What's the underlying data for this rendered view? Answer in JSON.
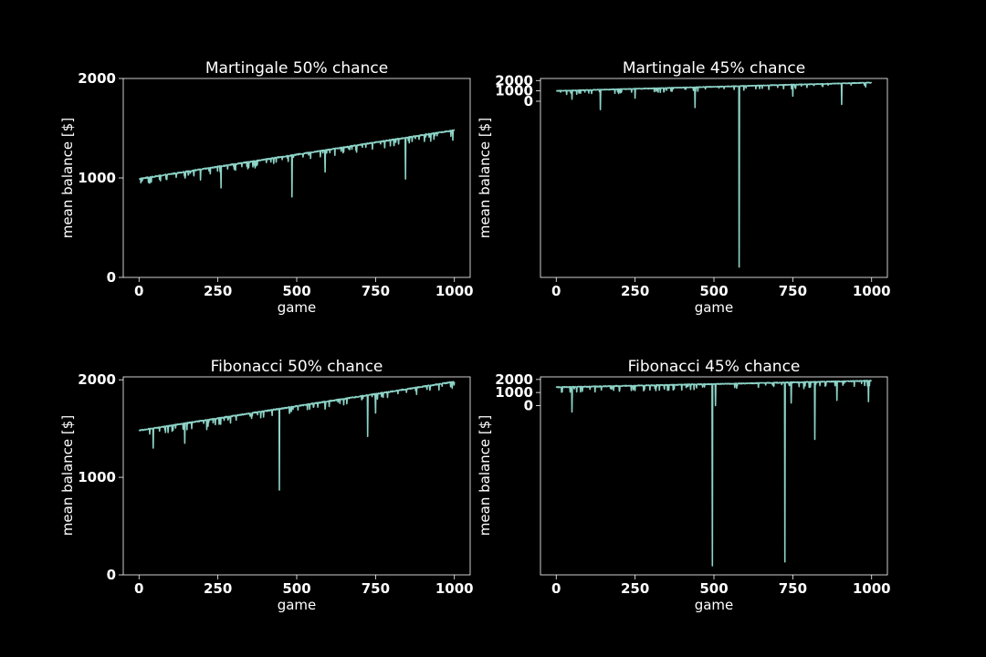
{
  "figure": {
    "background": "#000000",
    "foreground": "#ffffff",
    "line_color": "#8dd3c7"
  },
  "chart_data": [
    {
      "type": "line",
      "title": "Martingale 50% chance",
      "xlabel": "game",
      "ylabel": "mean balance [$]",
      "xlim": [
        -50,
        1050
      ],
      "ylim": [
        0,
        2000
      ],
      "xticks": [
        0,
        250,
        500,
        750,
        1000
      ],
      "yticks": [
        0,
        1000,
        2000
      ],
      "grid": false,
      "legend": "none",
      "series": [
        {
          "color": "#8dd3c7",
          "trend": {
            "x": [
              0,
              1000
            ],
            "y": [
              990,
              1480
            ]
          },
          "jitter": 10,
          "dips": [
            {
              "x": 10,
              "y": 970
            },
            {
              "x": 195,
              "y": 980
            },
            {
              "x": 260,
              "y": 900
            },
            {
              "x": 375,
              "y": 1130
            },
            {
              "x": 485,
              "y": 810
            },
            {
              "x": 590,
              "y": 1060
            },
            {
              "x": 845,
              "y": 990
            },
            {
              "x": 925,
              "y": 1370
            },
            {
              "x": 995,
              "y": 1380
            }
          ]
        }
      ]
    },
    {
      "type": "line",
      "title": "Martingale 45% chance",
      "xlabel": "game",
      "ylabel": "mean balance [$]",
      "xlim": [
        -50,
        1050
      ],
      "ylim": [
        -17000,
        2200
      ],
      "xticks": [
        0,
        250,
        500,
        750,
        1000
      ],
      "yticks": [
        0,
        1000,
        2000
      ],
      "grid": false,
      "legend": "none",
      "series": [
        {
          "color": "#8dd3c7",
          "trend": {
            "x": [
              0,
              1000
            ],
            "y": [
              1000,
              1800
            ]
          },
          "jitter": 60,
          "dips": [
            {
              "x": 50,
              "y": 200
            },
            {
              "x": 140,
              "y": -800
            },
            {
              "x": 250,
              "y": 300
            },
            {
              "x": 440,
              "y": -600
            },
            {
              "x": 580,
              "y": -16000
            },
            {
              "x": 750,
              "y": 500
            },
            {
              "x": 905,
              "y": -300
            }
          ]
        }
      ]
    },
    {
      "type": "line",
      "title": "Fibonacci 50% chance",
      "xlabel": "game",
      "ylabel": "mean balance [$]",
      "xlim": [
        -50,
        1050
      ],
      "ylim": [
        0,
        2030
      ],
      "xticks": [
        0,
        250,
        500,
        750,
        1000
      ],
      "yticks": [
        0,
        1000,
        2000
      ],
      "grid": false,
      "legend": "none",
      "series": [
        {
          "color": "#8dd3c7",
          "trend": {
            "x": [
              0,
              1000
            ],
            "y": [
              1480,
              1980
            ]
          },
          "jitter": 10,
          "dips": [
            {
              "x": 45,
              "y": 1300
            },
            {
              "x": 145,
              "y": 1350
            },
            {
              "x": 215,
              "y": 1490
            },
            {
              "x": 445,
              "y": 870
            },
            {
              "x": 590,
              "y": 1700
            },
            {
              "x": 725,
              "y": 1420
            },
            {
              "x": 750,
              "y": 1660
            },
            {
              "x": 880,
              "y": 1850
            }
          ]
        }
      ]
    },
    {
      "type": "line",
      "title": "Fibonacci 45% chance",
      "xlabel": "game",
      "ylabel": "mean balance [$]",
      "xlim": [
        -50,
        1050
      ],
      "ylim": [
        -13000,
        2200
      ],
      "xticks": [
        0,
        250,
        500,
        750,
        1000
      ],
      "yticks": [
        0,
        1000,
        2000
      ],
      "grid": false,
      "legend": "none",
      "series": [
        {
          "color": "#8dd3c7",
          "trend": {
            "x": [
              0,
              1000
            ],
            "y": [
              1400,
              1900
            ]
          },
          "jitter": 60,
          "dips": [
            {
              "x": 50,
              "y": -500
            },
            {
              "x": 200,
              "y": 1100
            },
            {
              "x": 495,
              "y": -12300
            },
            {
              "x": 505,
              "y": 0
            },
            {
              "x": 725,
              "y": -12000
            },
            {
              "x": 745,
              "y": 200
            },
            {
              "x": 785,
              "y": 1300
            },
            {
              "x": 820,
              "y": -2600
            },
            {
              "x": 890,
              "y": 400
            },
            {
              "x": 990,
              "y": 300
            }
          ]
        }
      ]
    }
  ]
}
